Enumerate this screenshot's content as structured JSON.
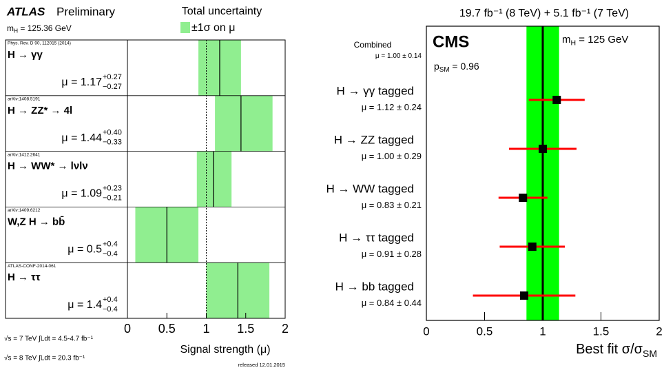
{
  "chart_data": [
    {
      "type": "band",
      "experiment": "ATLAS",
      "status": "Preliminary",
      "mass_label": [
        "m",
        "H",
        " = 125.36 GeV"
      ],
      "legend_title": "Total uncertainty",
      "legend_label": "±1σ on μ",
      "color": "#90ee90",
      "categories": [
        "H → γγ",
        "H → ZZ* → 4l",
        "H → WW* → lνlν",
        "W,Z H → bb̄",
        "H → ττ"
      ],
      "references": [
        "Phys. Rev. D 90, 112015 (2014)",
        "arXiv:1408.5191",
        "arXiv:1412.2641",
        "arXiv:1409.6212",
        "ATLAS-CONF-2014-061"
      ],
      "value_prefix": "μ = ",
      "values": [
        1.17,
        1.44,
        1.09,
        0.5,
        1.4
      ],
      "value_labels": [
        "1.17",
        "1.44",
        "1.09",
        "0.5",
        "1.4"
      ],
      "err_plus": [
        0.27,
        0.4,
        0.23,
        0.4,
        0.4
      ],
      "err_plus_labels": [
        "+0.27",
        "+0.40",
        "+0.23",
        "+0.4",
        "+0.4"
      ],
      "err_minus": [
        0.27,
        0.33,
        0.21,
        0.4,
        0.4
      ],
      "err_minus_labels": [
        "−0.27",
        "−0.33",
        "−0.21",
        "−0.4",
        "−0.4"
      ],
      "reference_line": 1,
      "xlim": [
        0,
        2
      ],
      "xticks": [
        0,
        0.5,
        1,
        1.5,
        2
      ],
      "xlabel": "Signal strength (μ)",
      "notes": [
        "√s = 7 TeV ∫Ldt = 4.5-4.7 fb⁻¹",
        "√s = 8 TeV ∫Ldt = 20.3 fb⁻¹"
      ],
      "footer": "released 12.01.2015"
    },
    {
      "type": "errorbar",
      "title": "19.7 fb⁻¹ (8 TeV) + 5.1 fb⁻¹ (7 TeV)",
      "experiment": "CMS",
      "mass_label": [
        "m",
        "H",
        " = 125 GeV"
      ],
      "p_label": [
        "p",
        "SM",
        " = 0.96"
      ],
      "combined": {
        "label": "Combined",
        "value": 1,
        "value_label": "1.00",
        "error": 0.14,
        "color": "#00ff00"
      },
      "categories": [
        "H → γγ tagged",
        "H → ZZ tagged",
        "H → WW tagged",
        "H → ττ tagged",
        "H → bb tagged"
      ],
      "value_prefix": "μ = ",
      "pm": " ± ",
      "values": [
        1.12,
        1.0,
        0.83,
        0.91,
        0.84
      ],
      "value_labels": [
        "1.12",
        "1.00",
        "0.83",
        "0.91",
        "0.84"
      ],
      "errors": [
        0.24,
        0.29,
        0.21,
        0.28,
        0.44
      ],
      "color": "#ff0000",
      "marker_color": "#000000",
      "xlim": [
        0,
        2
      ],
      "xticks": [
        0,
        0.5,
        1,
        1.5,
        2
      ],
      "xlabel": [
        "Best fit σ/σ",
        "SM"
      ]
    }
  ]
}
